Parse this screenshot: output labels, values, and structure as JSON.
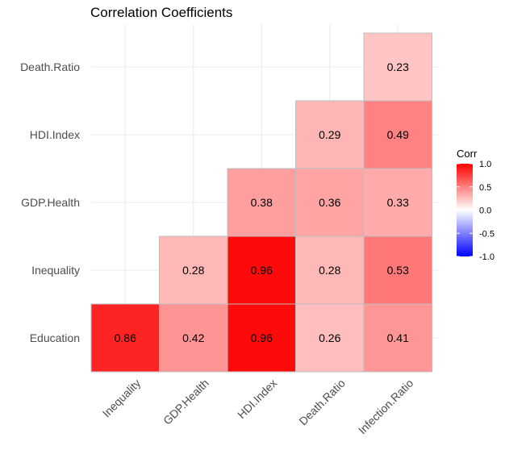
{
  "chart_data": {
    "type": "heatmap",
    "title": "Correlation Coefficients",
    "x_labels": [
      "Inequality",
      "GDP.Health",
      "HDI.Index",
      "Death.Ratio",
      "Infection.Ratio"
    ],
    "y_labels": [
      "Education",
      "Inequality",
      "GDP.Health",
      "HDI.Index",
      "Death.Ratio"
    ],
    "cells": [
      {
        "x": "Inequality",
        "y": "Education",
        "value": 0.86,
        "label": "0.86"
      },
      {
        "x": "GDP.Health",
        "y": "Education",
        "value": 0.42,
        "label": "0.42"
      },
      {
        "x": "HDI.Index",
        "y": "Education",
        "value": 0.96,
        "label": "0.96"
      },
      {
        "x": "Death.Ratio",
        "y": "Education",
        "value": 0.26,
        "label": "0.26"
      },
      {
        "x": "Infection.Ratio",
        "y": "Education",
        "value": 0.41,
        "label": "0.41"
      },
      {
        "x": "GDP.Health",
        "y": "Inequality",
        "value": 0.28,
        "label": "0.28"
      },
      {
        "x": "HDI.Index",
        "y": "Inequality",
        "value": 0.96,
        "label": "0.96"
      },
      {
        "x": "Death.Ratio",
        "y": "Inequality",
        "value": 0.28,
        "label": "0.28"
      },
      {
        "x": "Infection.Ratio",
        "y": "Inequality",
        "value": 0.53,
        "label": "0.53"
      },
      {
        "x": "HDI.Index",
        "y": "GDP.Health",
        "value": 0.38,
        "label": "0.38"
      },
      {
        "x": "Death.Ratio",
        "y": "GDP.Health",
        "value": 0.36,
        "label": "0.36"
      },
      {
        "x": "Infection.Ratio",
        "y": "GDP.Health",
        "value": 0.33,
        "label": "0.33"
      },
      {
        "x": "Death.Ratio",
        "y": "HDI.Index",
        "value": 0.29,
        "label": "0.29"
      },
      {
        "x": "Infection.Ratio",
        "y": "HDI.Index",
        "value": 0.49,
        "label": "0.49"
      },
      {
        "x": "Infection.Ratio",
        "y": "Death.Ratio",
        "value": 0.23,
        "label": "0.23"
      }
    ],
    "legend": {
      "title": "Corr",
      "ticks": [
        "1.0",
        "0.5",
        "0.0",
        "-0.5",
        "-1.0"
      ],
      "tick_values": [
        1.0,
        0.5,
        0.0,
        -0.5,
        -1.0
      ],
      "range": [
        -1,
        1
      ],
      "placement": "right"
    },
    "colors": {
      "low": "#0000ff",
      "mid": "#ffffff",
      "high": "#ff0000",
      "grid": "#ebebeb",
      "cell_border": "#bdbdbd"
    },
    "grid": true
  }
}
